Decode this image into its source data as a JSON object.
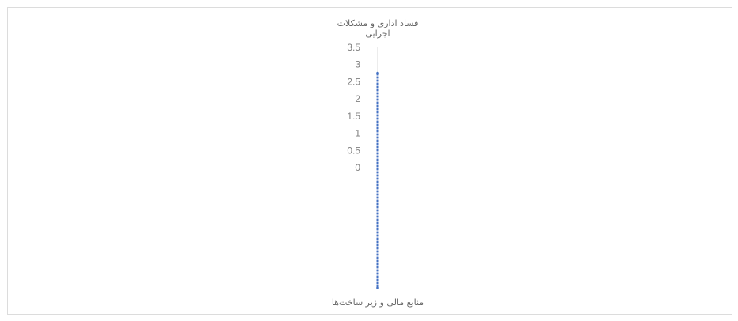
{
  "chart_data": {
    "type": "radar",
    "title": "",
    "axes": [
      "فساد اداری و مشکلات اجرایی",
      "منابع مالی و زیر ساخت‌ها"
    ],
    "axis_title_lines": [
      [
        "فساد اداری و مشکلات",
        "اجرایی"
      ],
      [
        "منابع مالی و زیر ساخت‌ها"
      ]
    ],
    "tick_labels": [
      "0",
      "0.5",
      "1",
      "1.5",
      "2",
      "2.5",
      "3",
      "3.5"
    ],
    "rlim": [
      0,
      3.5
    ],
    "series": [
      {
        "values": [
          2.75,
          3.5
        ]
      }
    ],
    "colors": {
      "series": "#4472c4",
      "axis": "#d9d9d9",
      "text": "#7f7f7f"
    },
    "grid": false,
    "legend": "none"
  }
}
